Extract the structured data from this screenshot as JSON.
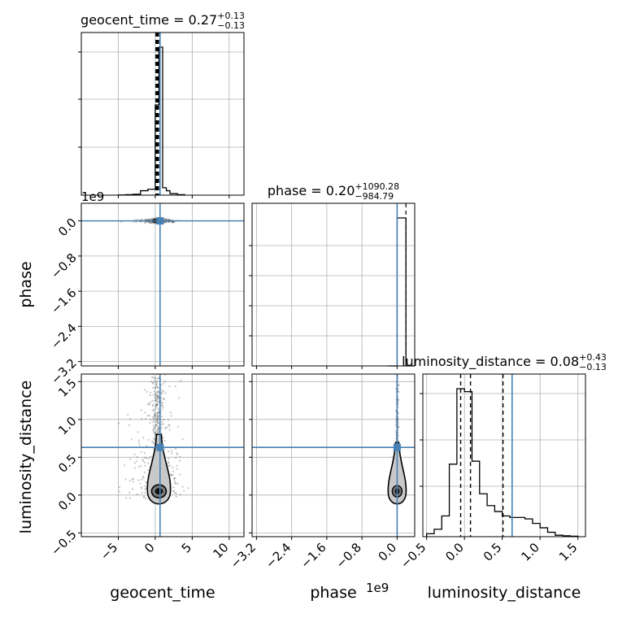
{
  "chart_data": {
    "type": "corner",
    "parameters": [
      "geocent_time",
      "phase",
      "luminosity_distance"
    ],
    "truth_color": "#4682b4",
    "line_color": "#000000",
    "titles": [
      {
        "param": "geocent_time",
        "text": "geocent_time = 0.27",
        "sup": "+0.13",
        "sub": "−0.13"
      },
      {
        "param": "phase",
        "text": "phase = 0.20",
        "sup": "+1090.28",
        "sub": "−984.79"
      },
      {
        "param": "luminosity_distance",
        "text": "luminosity_distance = 0.08",
        "sup": "+0.43",
        "sub": "−0.13"
      }
    ],
    "axis_labels": {
      "geocent_time": "geocent_time",
      "phase": "phase",
      "luminosity_distance": "luminosity_distance"
    },
    "offset_text": "1e9",
    "truths": {
      "geocent_time": 0.65,
      "phase": 0.0,
      "luminosity_distance": 0.63
    },
    "ranges": {
      "geocent_time": [
        -10,
        12
      ],
      "phase": [
        -3.3,
        0.4
      ],
      "luminosity_distance": [
        -0.55,
        1.6
      ]
    },
    "ticks": {
      "geocent_time": [
        -5,
        0,
        5,
        10
      ],
      "phase": [
        -3.2,
        -2.4,
        -1.6,
        -0.8,
        0.0
      ],
      "luminosity_distance": [
        -0.5,
        0.0,
        0.5,
        1.0,
        1.5
      ]
    },
    "tick_labels": {
      "geocent_time": [
        "−5",
        "0",
        "5",
        "10"
      ],
      "phase": [
        "−3.2",
        "−2.4",
        "−1.6",
        "−0.8",
        "0.0"
      ],
      "luminosity_distance": [
        "−0.5",
        "0.0",
        "0.5",
        "1.0",
        "1.5"
      ]
    },
    "quantile_lines": {
      "geocent_time": [
        0.14,
        0.27,
        0.4
      ],
      "phase": [
        0.2
      ],
      "luminosity_distance": [
        -0.05,
        0.08,
        0.51
      ]
    },
    "histograms": {
      "geocent_time": {
        "edges": [
          -5,
          -4,
          -3,
          -2,
          -1,
          0,
          0.5,
          1,
          1.5,
          2,
          3,
          4
        ],
        "counts": [
          0.001,
          0.003,
          0.006,
          0.03,
          0.04,
          0.61,
          1.0,
          0.05,
          0.03,
          0.01,
          0.003
        ]
      },
      "phase": {
        "edges": [
          -0.2,
          0.0,
          0.2,
          0.4
        ],
        "counts": [
          0.0,
          1.0,
          0.0
        ]
      },
      "luminosity_distance": {
        "edges": [
          -0.5,
          -0.4,
          -0.3,
          -0.2,
          -0.1,
          0.0,
          0.1,
          0.2,
          0.3,
          0.4,
          0.5,
          0.6,
          0.7,
          0.8,
          0.9,
          1.0,
          1.1,
          1.2,
          1.3,
          1.4,
          1.5
        ],
        "counts": [
          0.02,
          0.05,
          0.14,
          0.49,
          1.0,
          0.98,
          0.51,
          0.29,
          0.21,
          0.17,
          0.14,
          0.13,
          0.13,
          0.12,
          0.09,
          0.06,
          0.03,
          0.01,
          0.006,
          0.003
        ]
      }
    }
  }
}
